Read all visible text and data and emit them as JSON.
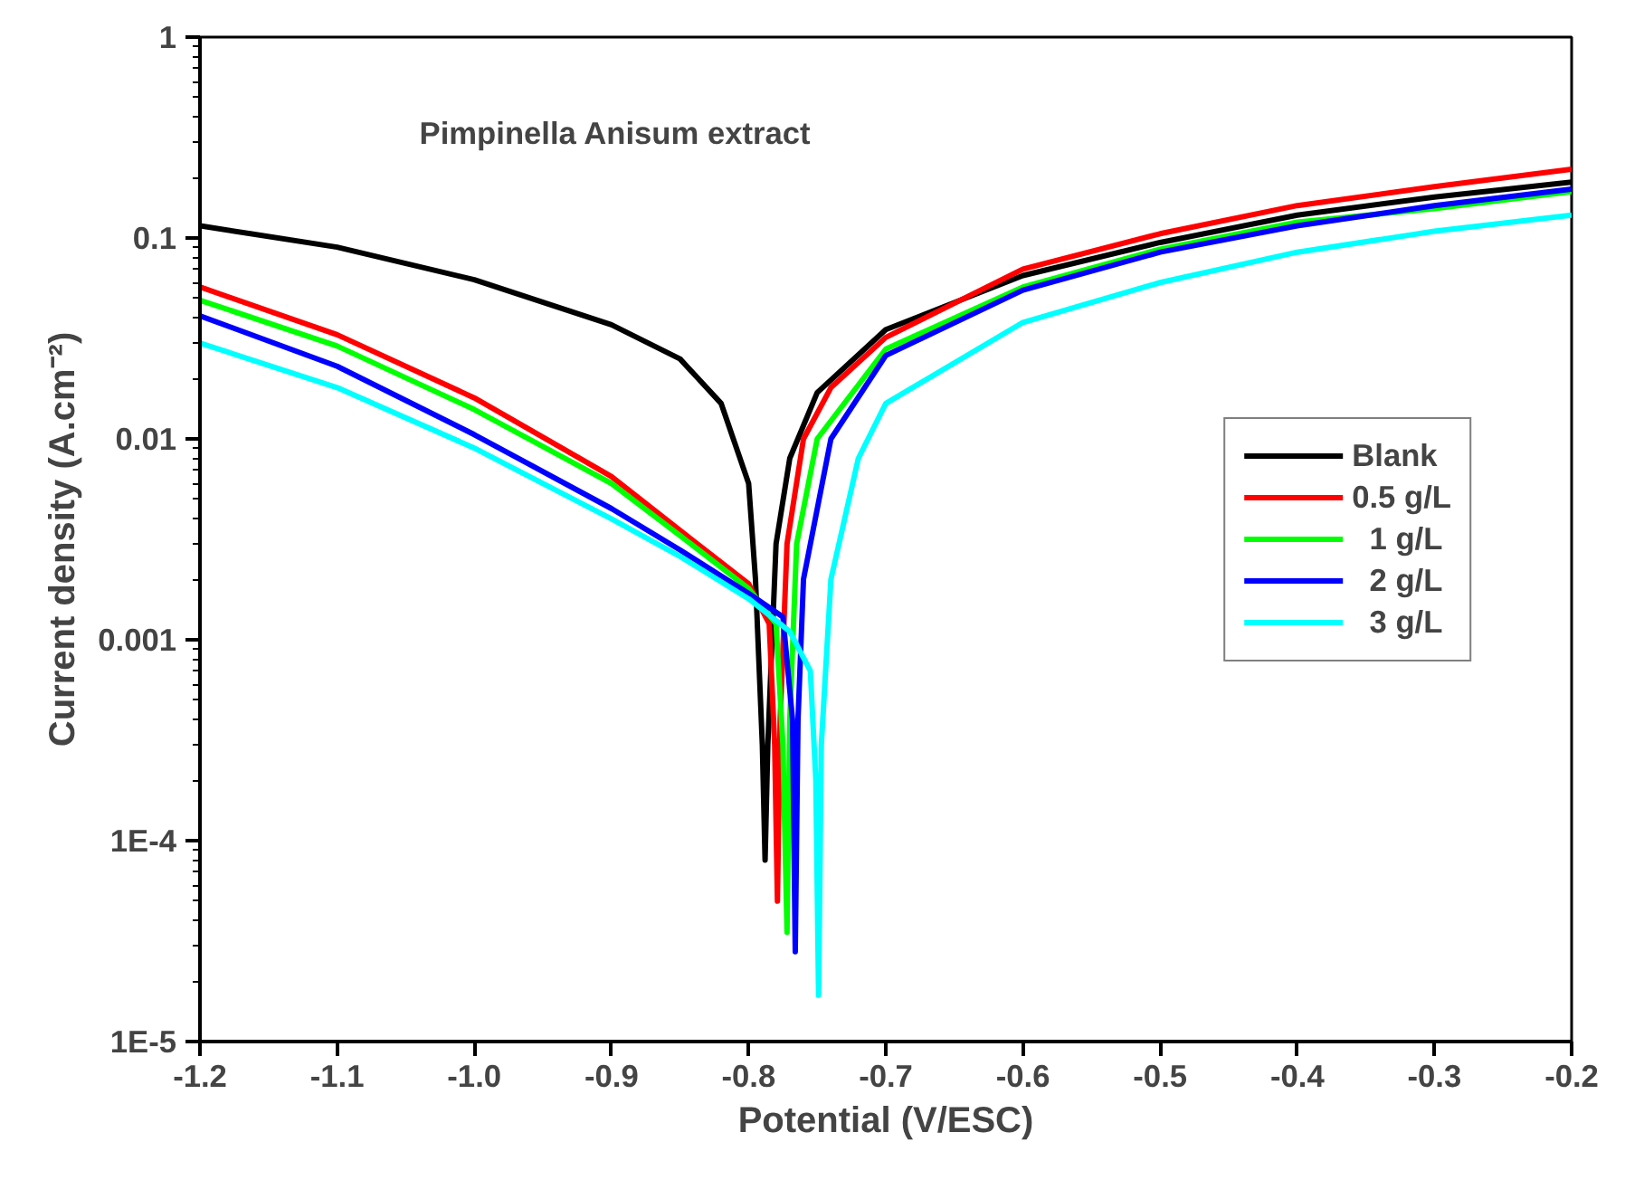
{
  "chart_data": {
    "type": "line",
    "title": "Pimpinella Anisum extract",
    "xlabel": "Potential (V/ESC)",
    "ylabel": "Current density (A.cm⁻²)",
    "xlim": [
      -1.2,
      -0.2
    ],
    "ylim": [
      1e-05,
      1
    ],
    "xticks": [
      -1.2,
      -1.1,
      {
        "value": -1.0,
        "label": "-1.0"
      },
      -0.9,
      -0.8,
      -0.7,
      -0.6,
      -0.5,
      -0.4,
      -0.3,
      -0.2
    ],
    "yticks": [
      {
        "value": 1e-05,
        "label": "1E-5"
      },
      {
        "value": 0.0001,
        "label": "1E-4"
      },
      0.001,
      0.01,
      0.1,
      1
    ],
    "log": "y",
    "grid": false,
    "legend": "right",
    "marker": "none",
    "line_style": "solid",
    "series": [
      {
        "name": "Blank",
        "color": "#000000",
        "x": [
          -1.2,
          -1.1,
          -1.0,
          -0.9,
          -0.85,
          -0.82,
          -0.8,
          -0.795,
          -0.79,
          -0.788,
          -0.786,
          -0.78,
          -0.77,
          -0.75,
          -0.7,
          -0.6,
          -0.5,
          -0.4,
          -0.3,
          -0.2
        ],
        "values": [
          0.115,
          0.09,
          0.062,
          0.037,
          0.025,
          0.015,
          0.006,
          0.002,
          0.0003,
          8e-05,
          0.0003,
          0.003,
          0.008,
          0.017,
          0.035,
          0.065,
          0.095,
          0.13,
          0.16,
          0.19
        ]
      },
      {
        "name": "0.5 g/L",
        "color": "#ff0000",
        "x": [
          -1.2,
          -1.1,
          -1.0,
          -0.9,
          -0.85,
          -0.8,
          -0.785,
          -0.781,
          -0.779,
          -0.777,
          -0.772,
          -0.76,
          -0.74,
          -0.7,
          -0.6,
          -0.5,
          -0.4,
          -0.3,
          -0.2
        ],
        "values": [
          0.057,
          0.033,
          0.016,
          0.0065,
          0.0035,
          0.0019,
          0.0012,
          0.0003,
          5e-05,
          0.0004,
          0.003,
          0.01,
          0.018,
          0.032,
          0.07,
          0.105,
          0.145,
          0.18,
          0.22
        ]
      },
      {
        "name": "  1 g/L",
        "color": "#00ff00",
        "x": [
          -1.2,
          -1.1,
          -1.0,
          -0.9,
          -0.85,
          -0.8,
          -0.78,
          -0.775,
          -0.772,
          -0.77,
          -0.765,
          -0.75,
          -0.7,
          -0.6,
          -0.5,
          -0.4,
          -0.3,
          -0.2
        ],
        "values": [
          0.049,
          0.029,
          0.014,
          0.006,
          0.0033,
          0.0018,
          0.0012,
          0.0003,
          3.5e-05,
          0.0004,
          0.003,
          0.01,
          0.028,
          0.057,
          0.088,
          0.12,
          0.14,
          0.17
        ]
      },
      {
        "name": "  2 g/L",
        "color": "#0000ff",
        "x": [
          -1.2,
          -1.1,
          -1.0,
          -0.9,
          -0.85,
          -0.8,
          -0.775,
          -0.768,
          -0.766,
          -0.764,
          -0.76,
          -0.74,
          -0.7,
          -0.6,
          -0.5,
          -0.4,
          -0.3,
          -0.2
        ],
        "values": [
          0.041,
          0.023,
          0.0105,
          0.0045,
          0.0028,
          0.0017,
          0.0013,
          0.0004,
          2.8e-05,
          0.0004,
          0.002,
          0.01,
          0.026,
          0.055,
          0.085,
          0.115,
          0.145,
          0.175
        ]
      },
      {
        "name": "  3 g/L",
        "color": "#00ffff",
        "x": [
          -1.2,
          -1.1,
          -1.0,
          -0.9,
          -0.85,
          -0.8,
          -0.77,
          -0.755,
          -0.751,
          -0.749,
          -0.747,
          -0.74,
          -0.72,
          -0.7,
          -0.6,
          -0.5,
          -0.4,
          -0.3,
          -0.2
        ],
        "values": [
          0.03,
          0.018,
          0.009,
          0.004,
          0.0026,
          0.0016,
          0.0011,
          0.0007,
          0.0002,
          1.7e-05,
          0.0003,
          0.002,
          0.008,
          0.015,
          0.038,
          0.06,
          0.085,
          0.108,
          0.13
        ]
      }
    ]
  }
}
